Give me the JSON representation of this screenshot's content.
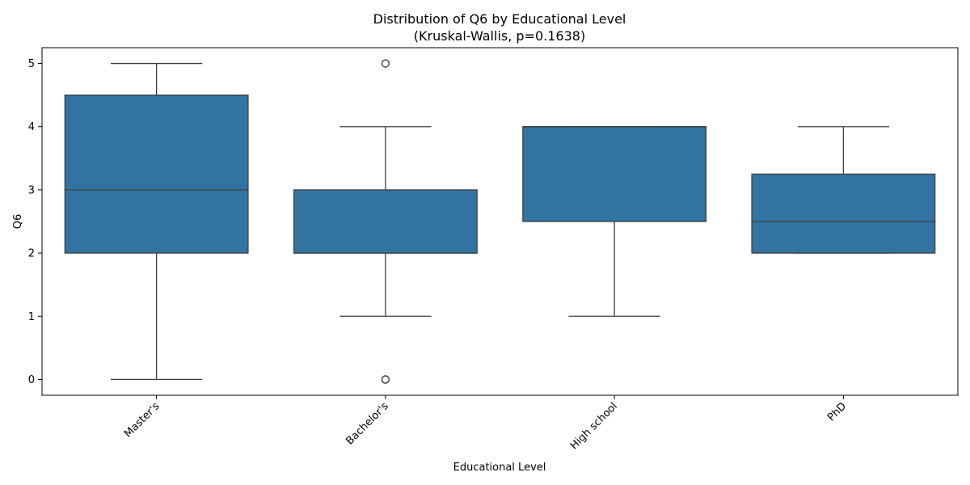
{
  "chart_data": {
    "type": "box",
    "title_line1": "Distribution of Q6 by Educational Level",
    "title_line2": "(Kruskal-Wallis, p=0.1638)",
    "xlabel": "Educational Level",
    "ylabel": "Q6",
    "ylim": [
      -0.25,
      5.25
    ],
    "yticks": [
      "0",
      "1",
      "2",
      "3",
      "4",
      "5"
    ],
    "box_color": "#3274a1",
    "line_color": "#3f3f3f",
    "categories": [
      "Master's",
      "Bachelor's",
      "High school",
      "PhD"
    ],
    "boxes": [
      {
        "category": "Master's",
        "whisker_low": 0,
        "q1": 2,
        "median": 3,
        "q3": 4.5,
        "whisker_high": 5,
        "outliers": []
      },
      {
        "category": "Bachelor's",
        "whisker_low": 1,
        "q1": 2,
        "median": 2,
        "q3": 3,
        "whisker_high": 4,
        "outliers": [
          5,
          0,
          0
        ]
      },
      {
        "category": "High school",
        "whisker_low": 1,
        "q1": 2.5,
        "median": 4,
        "q3": 4,
        "whisker_high": 4,
        "outliers": []
      },
      {
        "category": "PhD",
        "whisker_low": 2,
        "q1": 2,
        "median": 2.5,
        "q3": 3.25,
        "whisker_high": 4,
        "outliers": []
      }
    ]
  }
}
